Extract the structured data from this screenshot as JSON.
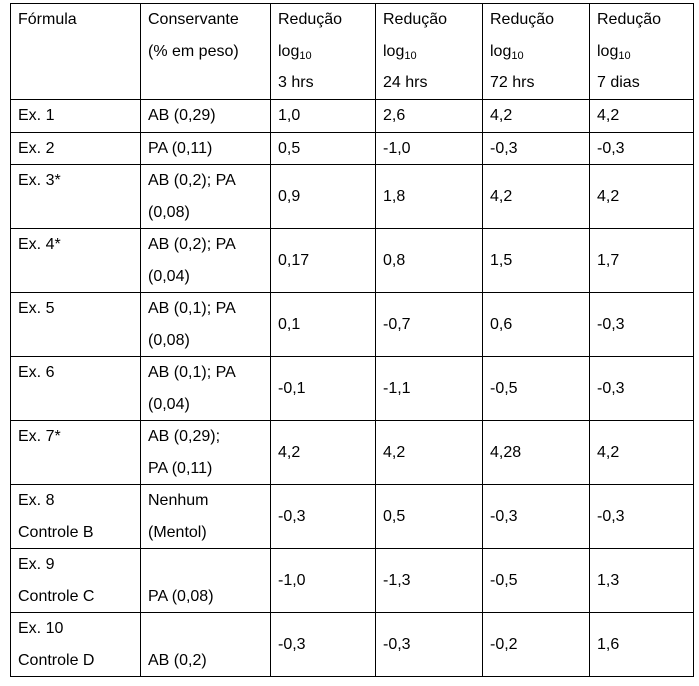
{
  "table": {
    "headers": [
      {
        "lines": [
          "Fórmula"
        ]
      },
      {
        "lines": [
          "Conservante",
          "(% em peso)"
        ]
      },
      {
        "lines": [
          "Redução",
          "log",
          "3 hrs"
        ],
        "sub": "10"
      },
      {
        "lines": [
          "Redução",
          "log",
          "24 hrs"
        ],
        "sub": "10"
      },
      {
        "lines": [
          "Redução",
          "log",
          "72 hrs"
        ],
        "sub": "10"
      },
      {
        "lines": [
          "Redução",
          "log",
          "7 dias"
        ],
        "sub": "10"
      }
    ],
    "rows": [
      {
        "formula": [
          "Ex. 1"
        ],
        "conservante": [
          "AB (0,29)"
        ],
        "values": [
          "1,0",
          "2,6",
          "4,2",
          "4,2"
        ]
      },
      {
        "formula": [
          "Ex. 2"
        ],
        "conservante": [
          "PA (0,11)"
        ],
        "values": [
          "0,5",
          "-1,0",
          "-0,3",
          "-0,3"
        ]
      },
      {
        "formula": [
          "Ex. 3*"
        ],
        "conservante": [
          "AB (0,2); PA",
          "(0,08)"
        ],
        "values": [
          "0,9",
          "1,8",
          "4,2",
          "4,2"
        ]
      },
      {
        "formula": [
          "Ex. 4*"
        ],
        "conservante": [
          "AB (0,2); PA",
          "(0,04)"
        ],
        "values": [
          "0,17",
          "0,8",
          "1,5",
          "1,7"
        ]
      },
      {
        "formula": [
          "Ex. 5"
        ],
        "conservante": [
          "AB (0,1); PA",
          "(0,08)"
        ],
        "values": [
          "0,1",
          "-0,7",
          "0,6",
          "-0,3"
        ]
      },
      {
        "formula": [
          "Ex. 6"
        ],
        "conservante": [
          "AB (0,1); PA",
          "(0,04)"
        ],
        "values": [
          "-0,1",
          "-1,1",
          "-0,5",
          "-0,3"
        ]
      },
      {
        "formula": [
          "Ex. 7*"
        ],
        "conservante": [
          "AB (0,29);",
          "PA (0,11)"
        ],
        "values": [
          "4,2",
          "4,2",
          "4,28",
          "4,2"
        ]
      },
      {
        "formula": [
          "Ex. 8",
          "Controle B"
        ],
        "conservante": [
          "Nenhum",
          "(Mentol)"
        ],
        "values": [
          "-0,3",
          "0,5",
          "-0,3",
          "-0,3"
        ]
      },
      {
        "formula": [
          "Ex. 9",
          "Controle C"
        ],
        "conservante": [
          "",
          "PA (0,08)"
        ],
        "values": [
          "-1,0",
          "-1,3",
          "-0,5",
          "1,3"
        ]
      },
      {
        "formula": [
          "Ex. 10",
          "Controle D"
        ],
        "conservante": [
          "",
          "AB (0,2)"
        ],
        "values": [
          "-0,3",
          "-0,3",
          "-0,2",
          "1,6"
        ]
      }
    ]
  }
}
